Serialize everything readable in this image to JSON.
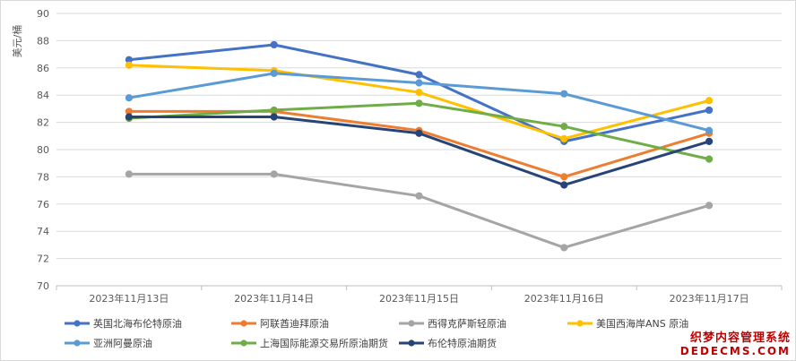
{
  "chart_data": {
    "type": "line",
    "ylabel": "美元/桶",
    "ylim": [
      70,
      90
    ],
    "yticks": [
      70,
      72,
      74,
      76,
      78,
      80,
      82,
      84,
      86,
      88,
      90
    ],
    "grid": true,
    "legend_position": "bottom",
    "categories": [
      "2023年11月13日",
      "2023年11月14日",
      "2023年11月15日",
      "2023年11月16日",
      "2023年11月17日"
    ],
    "series": [
      {
        "name": "英国北海布伦特原油",
        "color": "#4472c4",
        "values": [
          86.6,
          87.7,
          85.5,
          80.6,
          82.9
        ]
      },
      {
        "name": "阿联酋迪拜原油",
        "color": "#ed7d31",
        "values": [
          82.8,
          82.8,
          81.4,
          78.0,
          81.2
        ]
      },
      {
        "name": "西得克萨斯轻原油",
        "color": "#a5a5a5",
        "values": [
          78.2,
          78.2,
          76.6,
          72.8,
          75.9
        ]
      },
      {
        "name": "美国西海岸ANS 原油",
        "color": "#ffc000",
        "values": [
          86.2,
          85.8,
          84.2,
          80.8,
          83.6
        ]
      },
      {
        "name": "亚洲阿曼原油",
        "color": "#5b9bd5",
        "values": [
          83.8,
          85.6,
          84.9,
          84.1,
          81.4
        ]
      },
      {
        "name": "上海国际能源交易所原油期货",
        "color": "#70ad47",
        "values": [
          82.3,
          82.9,
          83.4,
          81.7,
          79.3
        ]
      },
      {
        "name": "布伦特原油期货",
        "color": "#264478",
        "values": [
          82.4,
          82.4,
          81.2,
          77.4,
          80.6
        ]
      }
    ]
  },
  "watermark": {
    "line1": "织梦内容管理系统",
    "line2": "DEDECMS.COM"
  }
}
